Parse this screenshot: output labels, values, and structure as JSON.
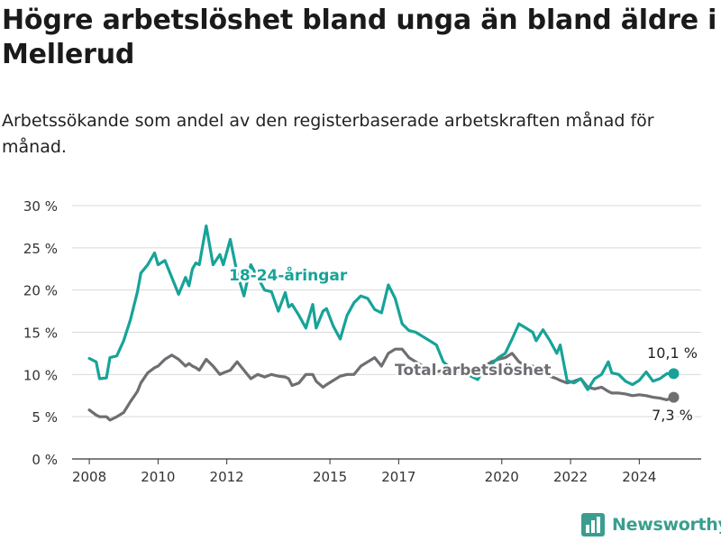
{
  "title": "Högre arbetslöshet bland unga än bland äldre i Mellerud",
  "subtitle": "Arbetssökande som andel av den registerbaserade arbetskraften månad för månad.",
  "brand": "Newsworthy",
  "colors": {
    "youth": "#17a398",
    "total": "#6e6e73",
    "grid": "#d9d9d9",
    "brand": "#3a9e8f"
  },
  "chart_data": {
    "type": "line",
    "title": "Högre arbetslöshet bland unga än bland äldre i Mellerud",
    "subtitle": "Arbetssökande som andel av den registerbaserade arbetskraften månad för månad.",
    "xlim": [
      2007.5,
      2025.8
    ],
    "ylim": [
      0,
      30
    ],
    "x_ticks": [
      2008,
      2010,
      2012,
      2015,
      2017,
      2020,
      2022,
      2024
    ],
    "y_ticks": [
      0,
      5,
      10,
      15,
      20,
      25,
      30
    ],
    "y_tick_labels": [
      "0 %",
      "5 %",
      "10 %",
      "15 %",
      "20 %",
      "25 %",
      "30 %"
    ],
    "grid": "horizontal",
    "legend": "inline labels",
    "series": [
      {
        "name": "18-24-åringar",
        "color": "#17a398",
        "end_label": "10,1 %",
        "x": [
          2008.0,
          2008.2,
          2008.3,
          2008.5,
          2008.6,
          2008.8,
          2009.0,
          2009.2,
          2009.4,
          2009.5,
          2009.7,
          2009.9,
          2010.0,
          2010.2,
          2010.4,
          2010.6,
          2010.8,
          2010.9,
          2011.0,
          2011.1,
          2011.2,
          2011.4,
          2011.6,
          2011.8,
          2011.9,
          2012.1,
          2012.3,
          2012.5,
          2012.7,
          2012.9,
          2013.1,
          2013.3,
          2013.5,
          2013.7,
          2013.8,
          2013.9,
          2014.1,
          2014.3,
          2014.5,
          2014.6,
          2014.8,
          2014.9,
          2015.1,
          2015.3,
          2015.5,
          2015.7,
          2015.9,
          2016.1,
          2016.3,
          2016.5,
          2016.7,
          2016.9,
          2017.1,
          2017.3,
          2017.5,
          2017.7,
          2017.9,
          2018.1,
          2018.3,
          2018.5,
          2018.7,
          2018.9,
          2019.1,
          2019.3,
          2019.5,
          2019.7,
          2019.9,
          2020.1,
          2020.3,
          2020.5,
          2020.7,
          2020.9,
          2021.0,
          2021.2,
          2021.4,
          2021.6,
          2021.7,
          2021.9,
          2022.1,
          2022.3,
          2022.5,
          2022.7,
          2022.9,
          2023.1,
          2023.2,
          2023.4,
          2023.6,
          2023.8,
          2024.0,
          2024.2,
          2024.4,
          2024.6,
          2024.8,
          2025.0
        ],
        "values": [
          11.9,
          11.5,
          9.5,
          9.6,
          12.0,
          12.2,
          14.0,
          16.5,
          19.8,
          22.0,
          23.0,
          24.4,
          23.0,
          23.5,
          21.5,
          19.5,
          21.5,
          20.5,
          22.5,
          23.2,
          23.0,
          27.6,
          23.0,
          24.2,
          23.0,
          26.0,
          22.0,
          19.3,
          23.0,
          21.5,
          20.0,
          19.8,
          17.5,
          19.7,
          18.0,
          18.3,
          17.0,
          15.5,
          18.3,
          15.5,
          17.5,
          17.8,
          15.7,
          14.2,
          17.0,
          18.5,
          19.3,
          19.0,
          17.7,
          17.3,
          20.6,
          19.0,
          16.0,
          15.2,
          15.0,
          14.5,
          14.0,
          13.5,
          11.5,
          10.8,
          10.2,
          11.0,
          9.8,
          9.4,
          10.8,
          11.2,
          12.0,
          12.5,
          14.2,
          16.0,
          15.5,
          15.0,
          14.0,
          15.3,
          14.0,
          12.5,
          13.5,
          9.3,
          9.0,
          9.5,
          8.2,
          9.5,
          10.0,
          11.5,
          10.2,
          10.0,
          9.2,
          8.8,
          9.3,
          10.3,
          9.2,
          9.5,
          10.1,
          10.1
        ]
      },
      {
        "name": "Total arbetslöshet",
        "color": "#6e6e73",
        "end_label": "7,3 %",
        "x": [
          2008.0,
          2008.2,
          2008.3,
          2008.5,
          2008.6,
          2008.8,
          2009.0,
          2009.2,
          2009.4,
          2009.5,
          2009.7,
          2009.9,
          2010.0,
          2010.2,
          2010.4,
          2010.6,
          2010.8,
          2010.9,
          2011.0,
          2011.1,
          2011.2,
          2011.4,
          2011.6,
          2011.8,
          2011.9,
          2012.1,
          2012.3,
          2012.5,
          2012.7,
          2012.9,
          2013.1,
          2013.3,
          2013.5,
          2013.7,
          2013.8,
          2013.9,
          2014.1,
          2014.3,
          2014.5,
          2014.6,
          2014.8,
          2014.9,
          2015.1,
          2015.3,
          2015.5,
          2015.7,
          2015.9,
          2016.1,
          2016.3,
          2016.5,
          2016.7,
          2016.9,
          2017.1,
          2017.3,
          2017.5,
          2017.7,
          2017.9,
          2018.1,
          2018.3,
          2018.5,
          2018.7,
          2018.9,
          2019.1,
          2019.3,
          2019.5,
          2019.7,
          2019.9,
          2020.1,
          2020.3,
          2020.5,
          2020.7,
          2020.9,
          2021.0,
          2021.2,
          2021.4,
          2021.6,
          2021.7,
          2021.9,
          2022.1,
          2022.3,
          2022.5,
          2022.7,
          2022.9,
          2023.1,
          2023.2,
          2023.4,
          2023.6,
          2023.8,
          2024.0,
          2024.2,
          2024.4,
          2024.6,
          2024.8,
          2025.0
        ],
        "values": [
          5.8,
          5.2,
          5.0,
          5.0,
          4.6,
          5.0,
          5.5,
          6.8,
          8.0,
          9.0,
          10.2,
          10.8,
          11.0,
          11.8,
          12.3,
          11.8,
          11.0,
          11.3,
          11.0,
          10.8,
          10.5,
          11.8,
          11.0,
          10.0,
          10.2,
          10.5,
          11.5,
          10.5,
          9.5,
          10.0,
          9.7,
          10.0,
          9.8,
          9.7,
          9.5,
          8.7,
          9.0,
          10.0,
          10.0,
          9.2,
          8.5,
          8.8,
          9.3,
          9.8,
          10.0,
          10.0,
          11.0,
          11.5,
          12.0,
          11.0,
          12.5,
          13.0,
          13.0,
          12.0,
          11.5,
          11.0,
          10.8,
          10.3,
          10.5,
          10.5,
          10.8,
          11.0,
          10.5,
          10.8,
          11.0,
          11.5,
          11.8,
          12.0,
          12.5,
          11.5,
          11.0,
          11.0,
          10.5,
          10.2,
          9.8,
          9.5,
          9.3,
          9.0,
          9.2,
          9.5,
          8.5,
          8.3,
          8.5,
          8.0,
          7.8,
          7.8,
          7.7,
          7.5,
          7.6,
          7.5,
          7.3,
          7.2,
          7.0,
          7.3
        ]
      }
    ]
  }
}
